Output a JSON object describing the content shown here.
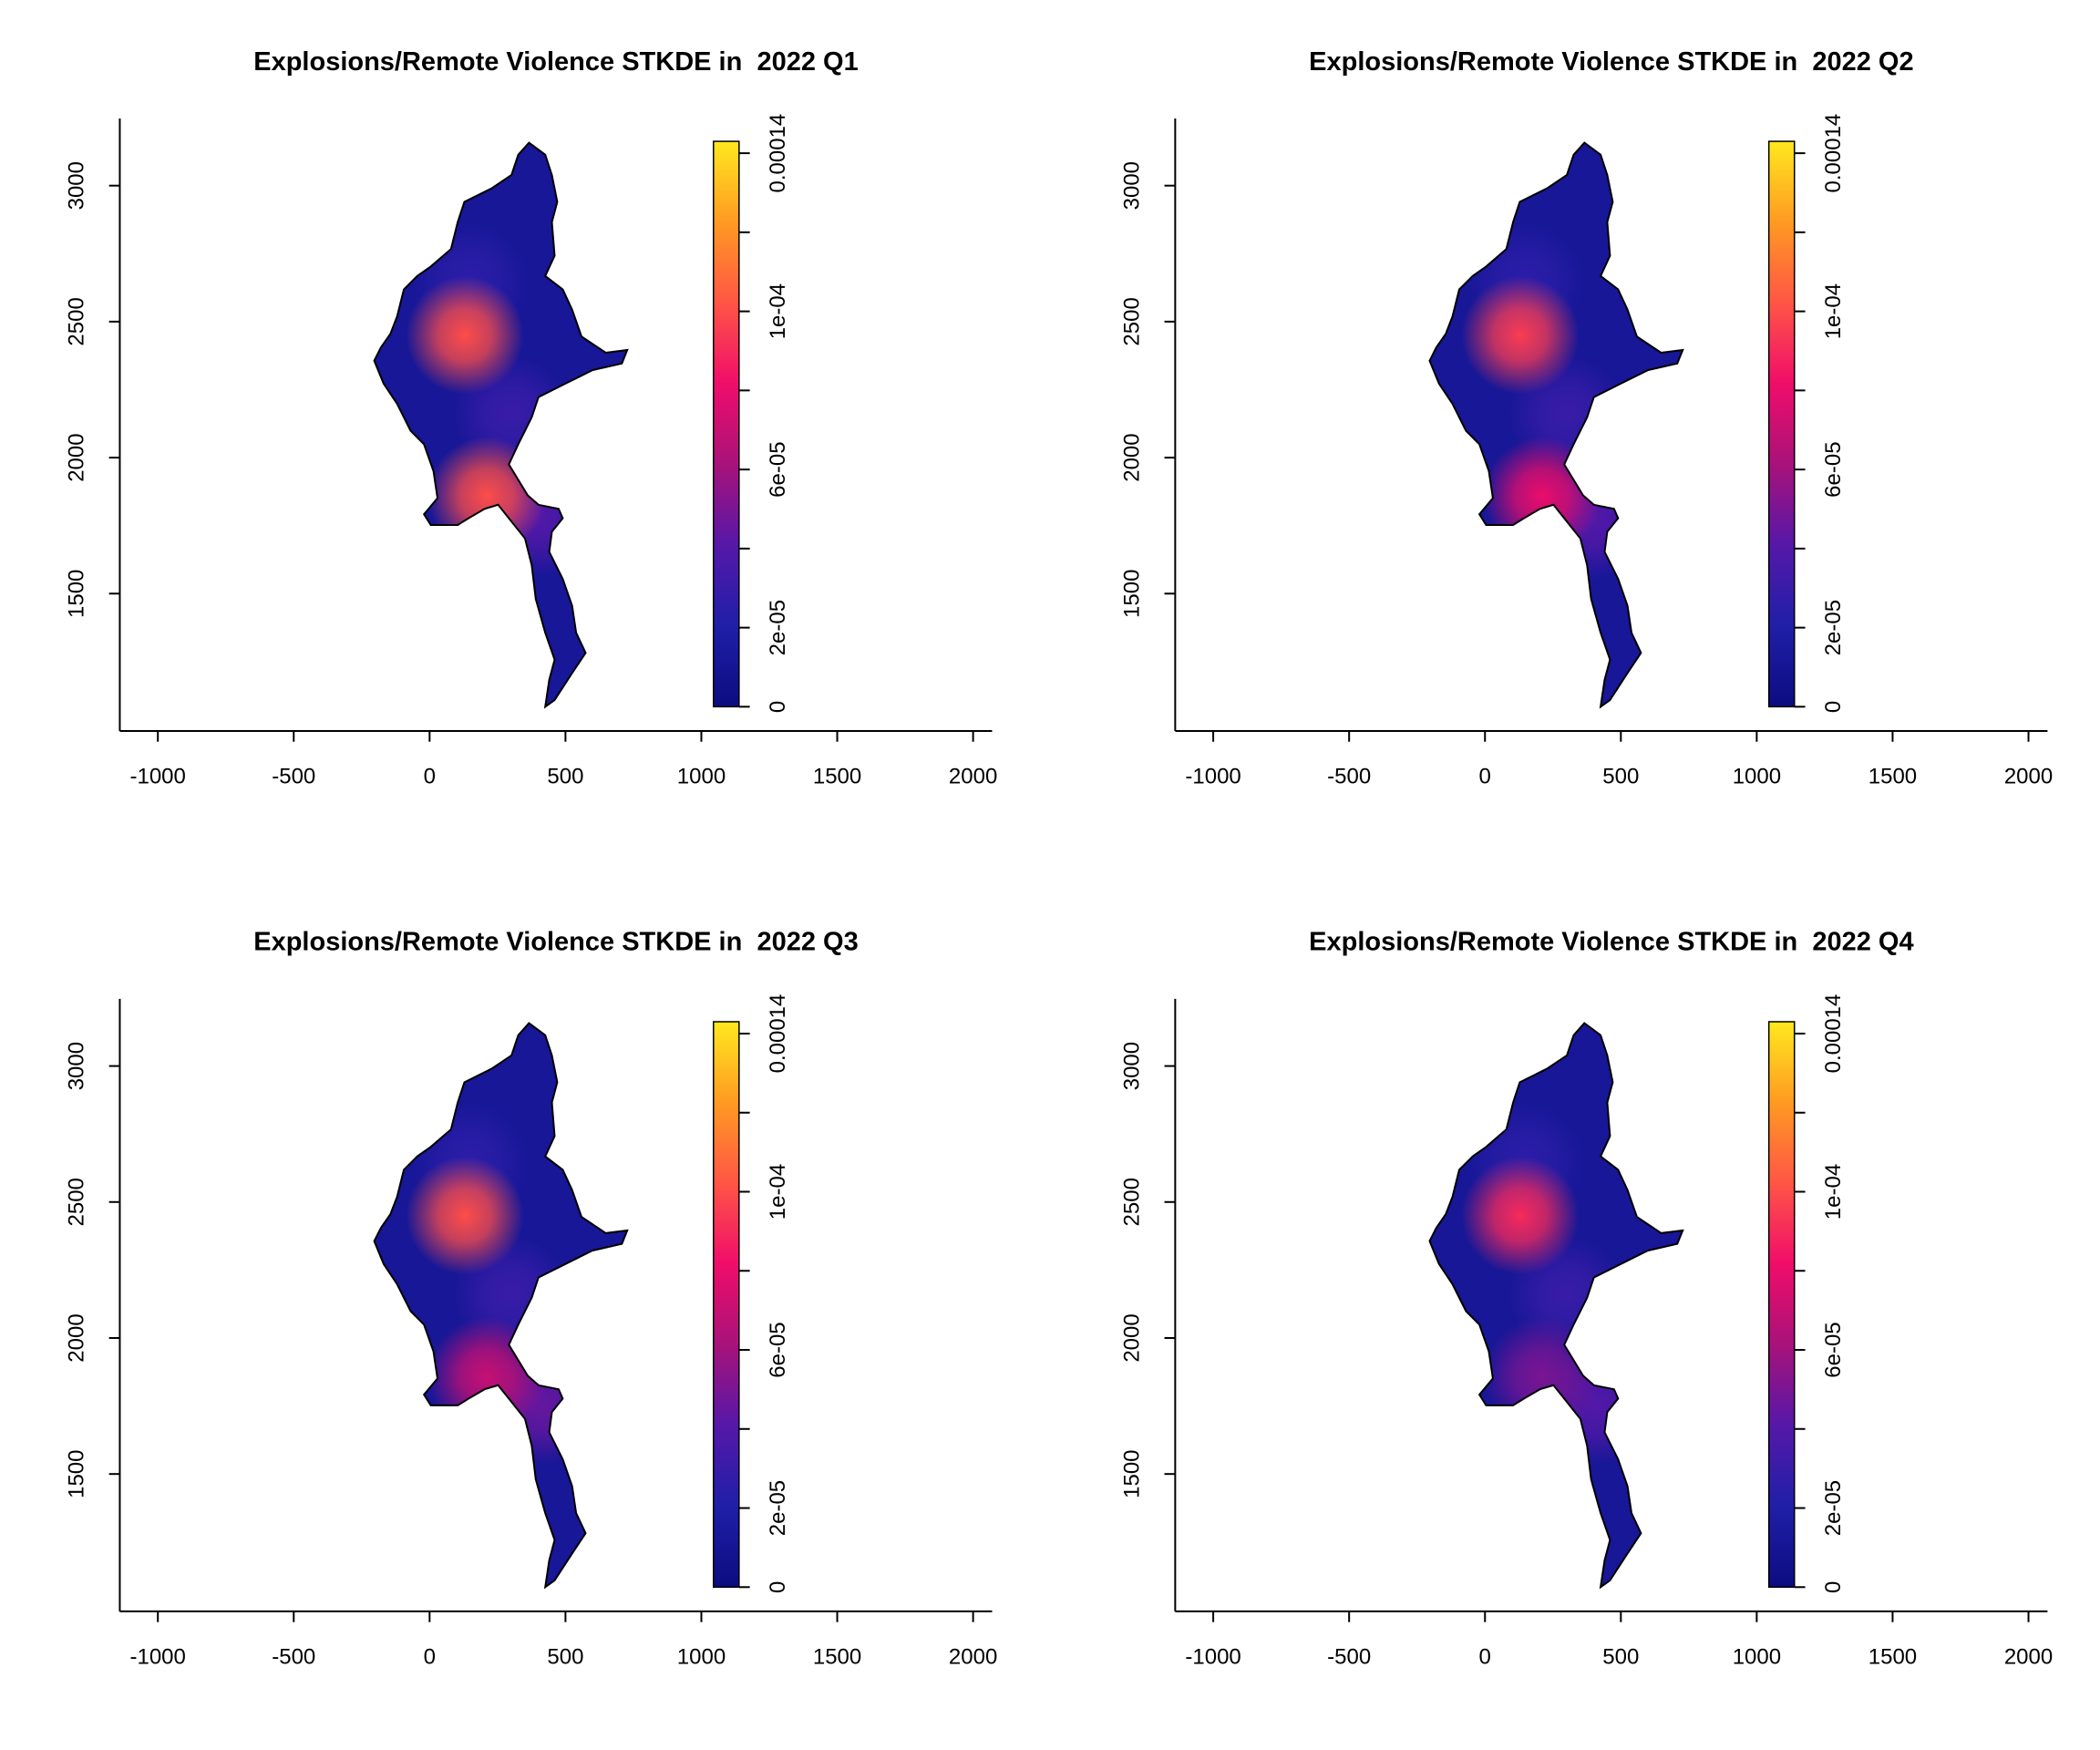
{
  "chart_data": [
    {
      "type": "density-map",
      "title": "Explosions/Remote Violence STKDE in  2022 Q1",
      "xlim": [
        -1140,
        2070
      ],
      "xticks": [
        -1000,
        -500,
        0,
        500,
        1000,
        1500,
        2000
      ],
      "ylim": [
        995,
        3247
      ],
      "yticks": [
        1500,
        2000,
        2500,
        3000
      ],
      "color_scale": {
        "lim": [
          0,
          0.000143
        ],
        "ticks": [
          0,
          {
            "value": 2e-05,
            "label": "2e-05"
          },
          {
            "value": 6e-05,
            "label": "6e-05"
          },
          {
            "value": 0.0001,
            "label": "1e-04"
          },
          0.00014
        ],
        "minor_ticks": [
          4e-05,
          8e-05,
          0.00012
        ],
        "colors": [
          "#0c0c80",
          "#1f1fa8",
          "#5518a8",
          "#a8127a",
          "#f00d6a",
          "#ff5545",
          "#ff9a22",
          "#ffe81e"
        ]
      },
      "background_density": 1.2e-05,
      "hotspots": [
        {
          "x": 150,
          "y": 2650,
          "value": 2.5e-05
        },
        {
          "x": 300,
          "y": 2160,
          "value": 3e-05
        },
        {
          "x": 400,
          "y": 1780,
          "value": 4e-05
        },
        {
          "x": 130,
          "y": 2450,
          "value": 0.0001
        },
        {
          "x": 210,
          "y": 1860,
          "value": 0.0001
        }
      ]
    },
    {
      "type": "density-map",
      "title": "Explosions/Remote Violence STKDE in  2022 Q2",
      "xlim": [
        -1140,
        2070
      ],
      "xticks": [
        -1000,
        -500,
        0,
        500,
        1000,
        1500,
        2000
      ],
      "ylim": [
        995,
        3247
      ],
      "yticks": [
        1500,
        2000,
        2500,
        3000
      ],
      "color_scale": {
        "lim": [
          0,
          0.000143
        ],
        "ticks": [
          0,
          {
            "value": 2e-05,
            "label": "2e-05"
          },
          {
            "value": 6e-05,
            "label": "6e-05"
          },
          {
            "value": 0.0001,
            "label": "1e-04"
          },
          0.00014
        ],
        "minor_ticks": [
          4e-05,
          8e-05,
          0.00012
        ],
        "colors": [
          "#0c0c80",
          "#1f1fa8",
          "#5518a8",
          "#a8127a",
          "#f00d6a",
          "#ff5545",
          "#ff9a22",
          "#ffe81e"
        ]
      },
      "background_density": 1.2e-05,
      "hotspots": [
        {
          "x": 150,
          "y": 2650,
          "value": 2.5e-05
        },
        {
          "x": 300,
          "y": 2160,
          "value": 3e-05
        },
        {
          "x": 400,
          "y": 1770,
          "value": 4e-05
        },
        {
          "x": 130,
          "y": 2450,
          "value": 9.5e-05
        },
        {
          "x": 210,
          "y": 1860,
          "value": 8e-05
        }
      ]
    },
    {
      "type": "density-map",
      "title": "Explosions/Remote Violence STKDE in  2022 Q3",
      "xlim": [
        -1140,
        2070
      ],
      "xticks": [
        -1000,
        -500,
        0,
        500,
        1000,
        1500,
        2000
      ],
      "ylim": [
        995,
        3247
      ],
      "yticks": [
        1500,
        2000,
        2500,
        3000
      ],
      "color_scale": {
        "lim": [
          0,
          0.000143
        ],
        "ticks": [
          0,
          {
            "value": 2e-05,
            "label": "2e-05"
          },
          {
            "value": 6e-05,
            "label": "6e-05"
          },
          {
            "value": 0.0001,
            "label": "1e-04"
          },
          0.00014
        ],
        "minor_ticks": [
          4e-05,
          8e-05,
          0.00012
        ],
        "colors": [
          "#0c0c80",
          "#1f1fa8",
          "#5518a8",
          "#a8127a",
          "#f00d6a",
          "#ff5545",
          "#ff9a22",
          "#ffe81e"
        ]
      },
      "background_density": 1.2e-05,
      "hotspots": [
        {
          "x": 150,
          "y": 2650,
          "value": 2.5e-05
        },
        {
          "x": 300,
          "y": 2160,
          "value": 3e-05
        },
        {
          "x": 410,
          "y": 1750,
          "value": 4.5e-05
        },
        {
          "x": 130,
          "y": 2450,
          "value": 0.0001
        },
        {
          "x": 210,
          "y": 1860,
          "value": 7e-05
        }
      ]
    },
    {
      "type": "density-map",
      "title": "Explosions/Remote Violence STKDE in  2022 Q4",
      "xlim": [
        -1140,
        2070
      ],
      "xticks": [
        -1000,
        -500,
        0,
        500,
        1000,
        1500,
        2000
      ],
      "ylim": [
        995,
        3247
      ],
      "yticks": [
        1500,
        2000,
        2500,
        3000
      ],
      "color_scale": {
        "lim": [
          0,
          0.000143
        ],
        "ticks": [
          0,
          {
            "value": 2e-05,
            "label": "2e-05"
          },
          {
            "value": 6e-05,
            "label": "6e-05"
          },
          {
            "value": 0.0001,
            "label": "1e-04"
          },
          0.00014
        ],
        "minor_ticks": [
          4e-05,
          8e-05,
          0.00012
        ],
        "colors": [
          "#0c0c80",
          "#1f1fa8",
          "#5518a8",
          "#a8127a",
          "#f00d6a",
          "#ff5545",
          "#ff9a22",
          "#ffe81e"
        ]
      },
      "background_density": 1.2e-05,
      "hotspots": [
        {
          "x": 150,
          "y": 2650,
          "value": 2.5e-05
        },
        {
          "x": 300,
          "y": 2160,
          "value": 3e-05
        },
        {
          "x": 410,
          "y": 1750,
          "value": 4e-05
        },
        {
          "x": 130,
          "y": 2450,
          "value": 9e-05
        },
        {
          "x": 210,
          "y": 1860,
          "value": 5e-05
        }
      ]
    }
  ]
}
